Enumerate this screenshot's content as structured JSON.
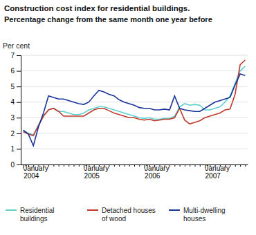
{
  "chart_data": {
    "type": "line",
    "title": "Construction cost index for residential buildings.",
    "subtitle": "Percentage change from the same month one year before",
    "ylabel": "Per cent",
    "categories": [
      "January\n2004",
      null,
      null,
      null,
      null,
      null,
      null,
      null,
      null,
      null,
      null,
      null,
      "January\n2005",
      null,
      null,
      null,
      null,
      null,
      null,
      null,
      null,
      null,
      null,
      null,
      "January\n2006",
      null,
      null,
      null,
      null,
      null,
      null,
      null,
      null,
      null,
      null,
      null,
      "January\n2007",
      null,
      null,
      null,
      null,
      null,
      null,
      null,
      null
    ],
    "series": [
      {
        "name": "Residential\nbuildings",
        "color": "#5ecfcf",
        "values": [
          2.2,
          2.0,
          1.9,
          2.5,
          3.1,
          3.5,
          3.6,
          3.4,
          3.4,
          3.3,
          3.2,
          3.2,
          3.3,
          3.5,
          3.6,
          3.7,
          3.7,
          3.6,
          3.5,
          3.4,
          3.3,
          3.2,
          3.1,
          3.0,
          2.95,
          3.0,
          2.9,
          2.9,
          2.95,
          2.95,
          3.1,
          3.7,
          3.9,
          3.8,
          3.85,
          3.8,
          3.5,
          3.5,
          3.6,
          3.7,
          4.0,
          4.4,
          5.2,
          6.0,
          6.3
        ]
      },
      {
        "name": "Detached houses\nof wood",
        "color": "#c0392b",
        "values": [
          2.1,
          1.95,
          1.85,
          2.5,
          3.1,
          3.5,
          3.6,
          3.4,
          3.1,
          3.1,
          3.1,
          3.1,
          3.1,
          3.3,
          3.5,
          3.6,
          3.6,
          3.45,
          3.3,
          3.2,
          3.1,
          3.0,
          3.0,
          2.9,
          2.85,
          2.9,
          2.8,
          2.85,
          2.9,
          2.9,
          3.0,
          3.6,
          2.85,
          2.6,
          2.7,
          2.8,
          3.0,
          3.1,
          3.2,
          3.3,
          3.5,
          3.55,
          4.5,
          6.4,
          6.7
        ]
      },
      {
        "name": "Multi-dwelling\nhouses",
        "color": "#1a3399",
        "values": [
          2.2,
          1.95,
          1.2,
          2.4,
          3.3,
          4.4,
          4.3,
          4.2,
          4.2,
          4.1,
          4.0,
          3.9,
          3.85,
          4.0,
          4.4,
          4.75,
          4.65,
          4.5,
          4.4,
          4.15,
          4.0,
          3.9,
          3.8,
          3.65,
          3.6,
          3.6,
          3.5,
          3.5,
          3.55,
          3.5,
          4.4,
          3.6,
          3.5,
          3.45,
          3.4,
          3.4,
          3.6,
          3.8,
          4.0,
          4.1,
          4.2,
          4.3,
          5.1,
          5.8,
          5.7
        ]
      }
    ],
    "ylim": [
      0,
      7
    ],
    "yticks": [
      0,
      1,
      2,
      3,
      4,
      5,
      6,
      7
    ],
    "grid": true,
    "legend": "bottom"
  }
}
